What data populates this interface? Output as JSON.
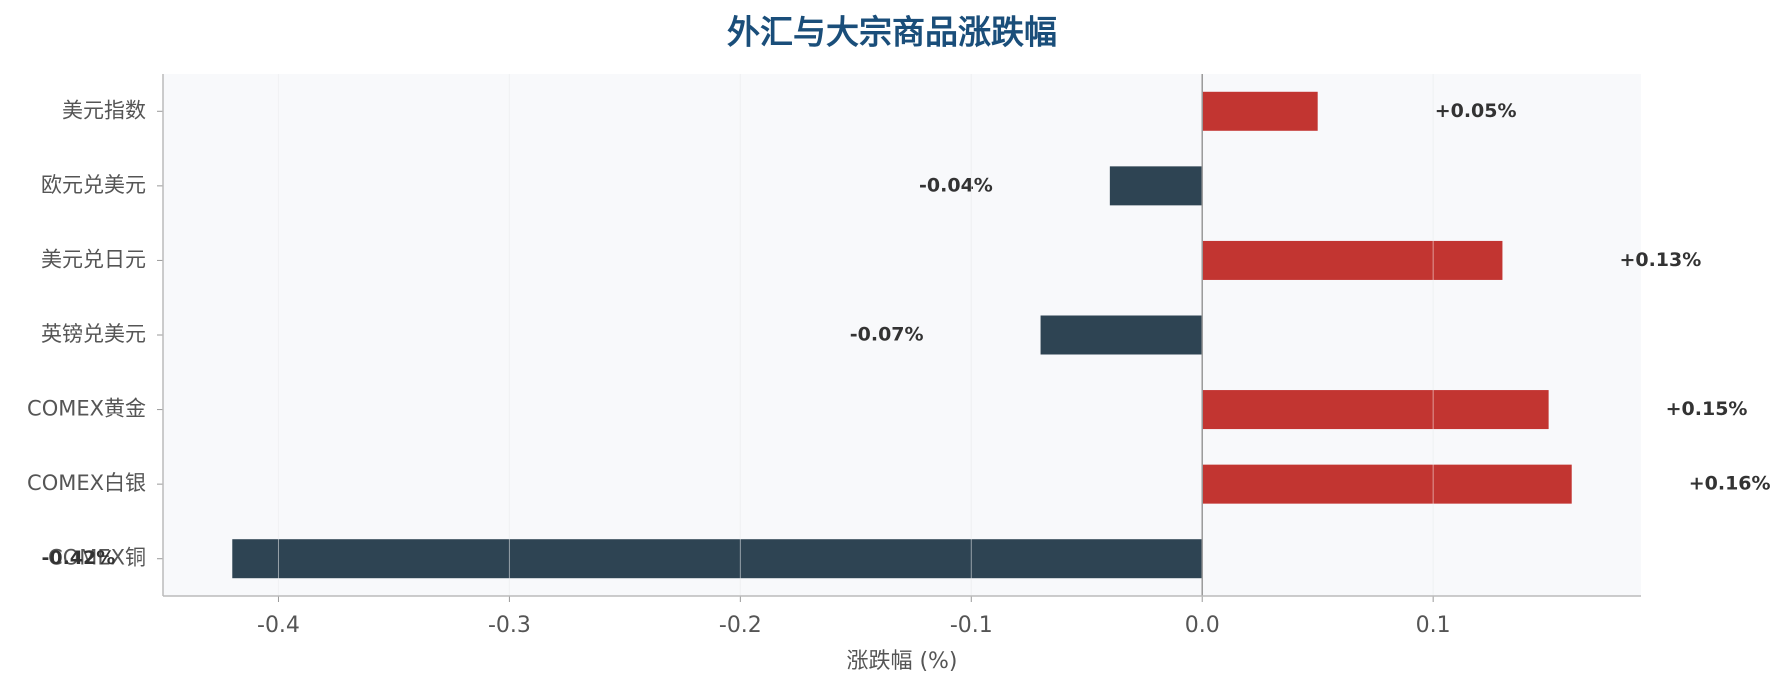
{
  "chart_data": {
    "type": "barh",
    "title": "外汇与大宗商品涨跌幅",
    "xlabel": "涨跌幅 (%)",
    "categories": [
      "美元指数",
      "欧元兑美元",
      "美元兑日元",
      "英镑兑美元",
      "COMEX黄金",
      "COMEX白银",
      "COMEX铜"
    ],
    "values": [
      0.05,
      -0.04,
      0.13,
      -0.07,
      0.15,
      0.16,
      -0.42
    ],
    "value_labels": [
      "+0.05%",
      "-0.04%",
      "+0.13%",
      "-0.07%",
      "+0.15%",
      "+0.16%",
      "-0.42%"
    ],
    "positive_color": "#c23531",
    "negative_color": "#2e4453",
    "xlim": [
      -0.45,
      0.19
    ],
    "xticks": [
      -0.4,
      -0.3,
      -0.2,
      -0.1,
      {
        "value": 0,
        "label": "0.0"
      },
      0.1
    ],
    "grid": true
  }
}
